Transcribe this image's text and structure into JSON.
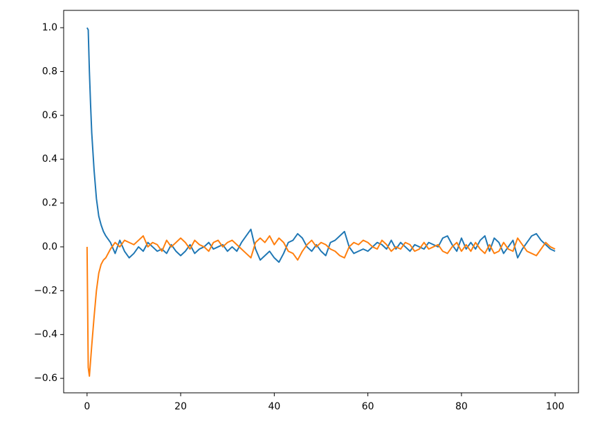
{
  "chart_data": {
    "type": "line",
    "x": [
      0,
      0.25,
      0.5,
      0.75,
      1,
      1.5,
      2,
      2.5,
      3,
      3.5,
      4,
      5,
      6,
      7,
      8,
      9,
      10,
      11,
      12,
      13,
      14,
      15,
      16,
      17,
      18,
      19,
      20,
      21,
      22,
      23,
      24,
      25,
      26,
      27,
      28,
      29,
      30,
      31,
      32,
      33,
      34,
      35,
      36,
      37,
      38,
      39,
      40,
      41,
      42,
      43,
      44,
      45,
      46,
      47,
      48,
      49,
      50,
      51,
      52,
      53,
      54,
      55,
      56,
      57,
      58,
      59,
      60,
      61,
      62,
      63,
      64,
      65,
      66,
      67,
      68,
      69,
      70,
      71,
      72,
      73,
      74,
      75,
      76,
      77,
      78,
      79,
      80,
      81,
      82,
      83,
      84,
      85,
      86,
      87,
      88,
      89,
      90,
      91,
      92,
      93,
      94,
      95,
      96,
      97,
      98,
      99,
      100
    ],
    "series": [
      {
        "color": "#1f77b4",
        "values": [
          1.0,
          0.99,
          0.8,
          0.65,
          0.52,
          0.35,
          0.22,
          0.14,
          0.1,
          0.07,
          0.05,
          0.02,
          -0.03,
          0.03,
          -0.02,
          -0.05,
          -0.03,
          0.0,
          -0.02,
          0.02,
          0.0,
          -0.02,
          -0.01,
          -0.03,
          0.01,
          -0.02,
          -0.04,
          -0.02,
          0.01,
          -0.03,
          -0.01,
          0.0,
          0.02,
          -0.01,
          0.0,
          0.01,
          -0.02,
          0.0,
          -0.02,
          0.02,
          0.05,
          0.08,
          -0.01,
          -0.06,
          -0.04,
          -0.02,
          -0.05,
          -0.07,
          -0.03,
          0.02,
          0.03,
          0.06,
          0.04,
          0.0,
          -0.02,
          0.01,
          -0.02,
          -0.04,
          0.02,
          0.03,
          0.05,
          0.07,
          0.0,
          -0.03,
          -0.02,
          -0.01,
          -0.02,
          0.0,
          0.02,
          0.01,
          -0.01,
          0.03,
          -0.01,
          0.02,
          0.0,
          -0.02,
          0.01,
          0.0,
          -0.01,
          0.02,
          0.01,
          0.0,
          0.04,
          0.05,
          0.01,
          -0.02,
          0.04,
          -0.01,
          0.02,
          -0.01,
          0.03,
          0.05,
          -0.02,
          0.04,
          0.02,
          -0.03,
          0.0,
          0.03,
          -0.05,
          -0.01,
          0.02,
          0.05,
          0.06,
          0.03,
          0.01,
          -0.01,
          -0.02
        ]
      },
      {
        "color": "#ff7f0e",
        "values": [
          0.0,
          -0.55,
          -0.59,
          -0.52,
          -0.45,
          -0.32,
          -0.2,
          -0.12,
          -0.08,
          -0.06,
          -0.05,
          -0.01,
          0.02,
          0.0,
          0.03,
          0.02,
          0.01,
          0.03,
          0.05,
          0.0,
          0.02,
          0.01,
          -0.02,
          0.03,
          0.0,
          0.02,
          0.04,
          0.02,
          -0.01,
          0.03,
          0.01,
          0.0,
          -0.02,
          0.02,
          0.03,
          0.0,
          0.02,
          0.03,
          0.01,
          -0.01,
          -0.03,
          -0.05,
          0.02,
          0.04,
          0.02,
          0.05,
          0.01,
          0.04,
          0.02,
          -0.02,
          -0.03,
          -0.06,
          -0.02,
          0.01,
          0.03,
          0.0,
          0.02,
          0.01,
          -0.01,
          -0.02,
          -0.04,
          -0.05,
          0.0,
          0.02,
          0.01,
          0.03,
          0.02,
          0.0,
          -0.01,
          0.03,
          0.01,
          -0.02,
          0.0,
          -0.01,
          0.02,
          0.01,
          -0.02,
          -0.01,
          0.02,
          -0.01,
          0.0,
          0.01,
          -0.02,
          -0.03,
          0.0,
          0.02,
          -0.02,
          0.01,
          -0.02,
          0.02,
          -0.01,
          -0.03,
          0.01,
          -0.03,
          -0.02,
          0.02,
          -0.01,
          -0.02,
          0.04,
          0.01,
          -0.02,
          -0.03,
          -0.04,
          -0.01,
          0.02,
          0.0,
          -0.01
        ]
      }
    ],
    "xlim": [
      -5,
      105
    ],
    "xticks": [
      0,
      20,
      40,
      60,
      80,
      100
    ],
    "ylim": [
      -0.666,
      1.079
    ],
    "yticks": [
      {
        "value": -0.6,
        "label": "−0.6"
      },
      {
        "value": -0.4,
        "label": "−0.4"
      },
      {
        "value": -0.2,
        "label": "−0.2"
      },
      {
        "value": 0.0,
        "label": "0.0"
      },
      {
        "value": 0.2,
        "label": "0.2"
      },
      {
        "value": 0.4,
        "label": "0.4"
      },
      {
        "value": 0.6,
        "label": "0.6"
      },
      {
        "value": 0.8,
        "label": "0.8"
      },
      {
        "value": 1.0,
        "label": "1.0"
      }
    ]
  }
}
